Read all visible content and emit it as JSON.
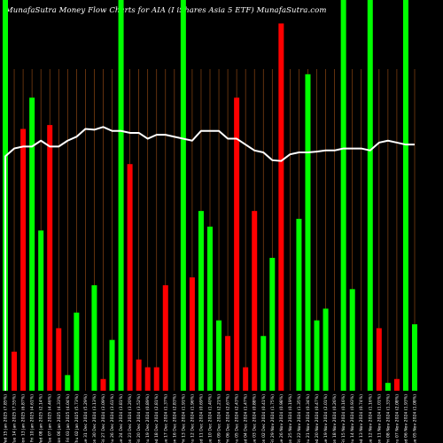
{
  "chart_data": {
    "type": "bar",
    "title": "MunafaSutra  Money Flow  Charts for AIA                    (I                          iShares Asia  5   ETF) MunafaSutra.com",
    "categories": [
      "Wed 15 Jan 2025 (7.85%)",
      "Tue 14 Jan 2025 (7.55%)",
      "Mon 13 Jan 2025 (6.87%)",
      "Fri 10 Jan 2025 (4.61%)",
      "Wed 08 Jan 2025 (2.14%)",
      "Tue 07 Jan 2025 (4.46%)",
      "Mon 06 Jan 2025 (4.33%)",
      "Fri 03 Jan 2025 (4.04%)",
      "Thu 02 Jan 2025 (5.73%)",
      "Tue 31 Dec 2024 (5.29%)",
      "Mon 30 Dec 2024 (3.13%)",
      "Fri 27 Dec 2024 (3.09%)",
      "Thu 26 Dec 2024 (3.61%)",
      "Tue 24 Dec 2024 (3.81%)",
      "Mon 23 Dec 2024 (3.20%)",
      "Fri 20 Dec 2024 (3.52%)",
      "Thu 19 Dec 2024 (0.89%)",
      "Wed 18 Dec 2024 (2.81%)",
      "Tue 17 Dec 2024 (1.37%)",
      "Mon 16 Dec 2024 (2.83%)",
      "Fri 13 Dec 2024 (1.91%)",
      "Thu 12 Dec 2024 (1.96%)",
      "Wed 11 Dec 2024 (0.69%)",
      "Tue 10 Dec 2024 (1.40%)",
      "Mon 09 Dec 2024 (2.21%)",
      "Fri 06 Dec 2024 (2.67%)",
      "Thu 05 Dec 2024 (2.43%)",
      "Wed 04 Dec 2024 (1.47%)",
      "Tue 03 Dec 2024 (0.88%)",
      "Mon 02 Dec 2024 (0.41%)",
      "Fri 29 Nov 2024 (1.75%)",
      "Tue 26 Nov 2024 (0.98%)",
      "Mon 25 Nov 2024 (0.19%)",
      "Fri 22 Nov 2024 (1.35%)",
      "Thu 21 Nov 2024 (0.34%)",
      "Wed 20 Nov 2024 (0.47%)",
      "Tue 19 Nov 2024 (2.01%)",
      "Mon 18 Nov 2024 (0.26%)",
      "Fri 15 Nov 2024 (0.16%)",
      "Thu 14 Nov 2024 (0.93%)",
      "Wed 13 Nov 2024 (0.74%)",
      "Tue 12 Nov 2024 (1.16%)",
      "Mon 11 Nov 2024 (1.01%)",
      "Fri 08 Nov 2024 (1.33%)",
      "Thu 07 Nov 2024 (2.08%)",
      "Wed 06 Nov 2024 (1.93%)",
      "Tue 05 Nov 2024 (1.08%)"
    ],
    "series": [
      {
        "values": [
          100,
          10,
          67,
          75,
          41,
          68,
          16,
          4,
          20,
          0,
          27,
          3,
          13,
          100,
          58,
          8,
          6,
          6,
          27,
          0,
          100,
          29,
          46,
          42,
          18,
          14,
          75,
          6,
          46,
          14,
          34,
          94,
          0,
          44,
          81,
          18,
          21,
          0,
          100,
          26,
          0,
          100,
          16,
          2,
          3,
          100,
          17
        ],
        "colors": [
          "green",
          "red",
          "red",
          "green",
          "green",
          "red",
          "red",
          "green",
          "green",
          "",
          "green",
          "red",
          "green",
          "green",
          "red",
          "red",
          "red",
          "red",
          "red",
          "",
          "green",
          "red",
          "green",
          "green",
          "green",
          "red",
          "red",
          "red",
          "red",
          "green",
          "green",
          "red",
          "",
          "green",
          "green",
          "green",
          "green",
          "",
          "green",
          "green",
          "",
          "green",
          "red",
          "green",
          "red",
          "green",
          "green"
        ]
      },
      {
        "values": [
          60,
          62,
          62.5,
          62.5,
          64,
          62.5,
          62.5,
          64,
          65,
          67,
          66.8,
          67.5,
          66.5,
          66.5,
          66,
          66,
          64.5,
          65.5,
          65.5,
          65,
          64.5,
          64,
          66.5,
          66.5,
          66.5,
          64.5,
          64.5,
          63,
          61.5,
          61,
          59,
          58.8,
          60.5,
          61,
          61,
          61.2,
          61.5,
          61.5,
          62,
          62,
          62,
          61.5,
          63.5,
          64,
          63.5,
          63,
          63
        ]
      }
    ],
    "ylim": [
      0,
      100
    ],
    "grid": "vertical",
    "colors": {
      "green": "#00ff00",
      "red": "#ff0000",
      "line": "#ffffff",
      "grid": "#8b4513",
      "background": "#000000"
    }
  }
}
